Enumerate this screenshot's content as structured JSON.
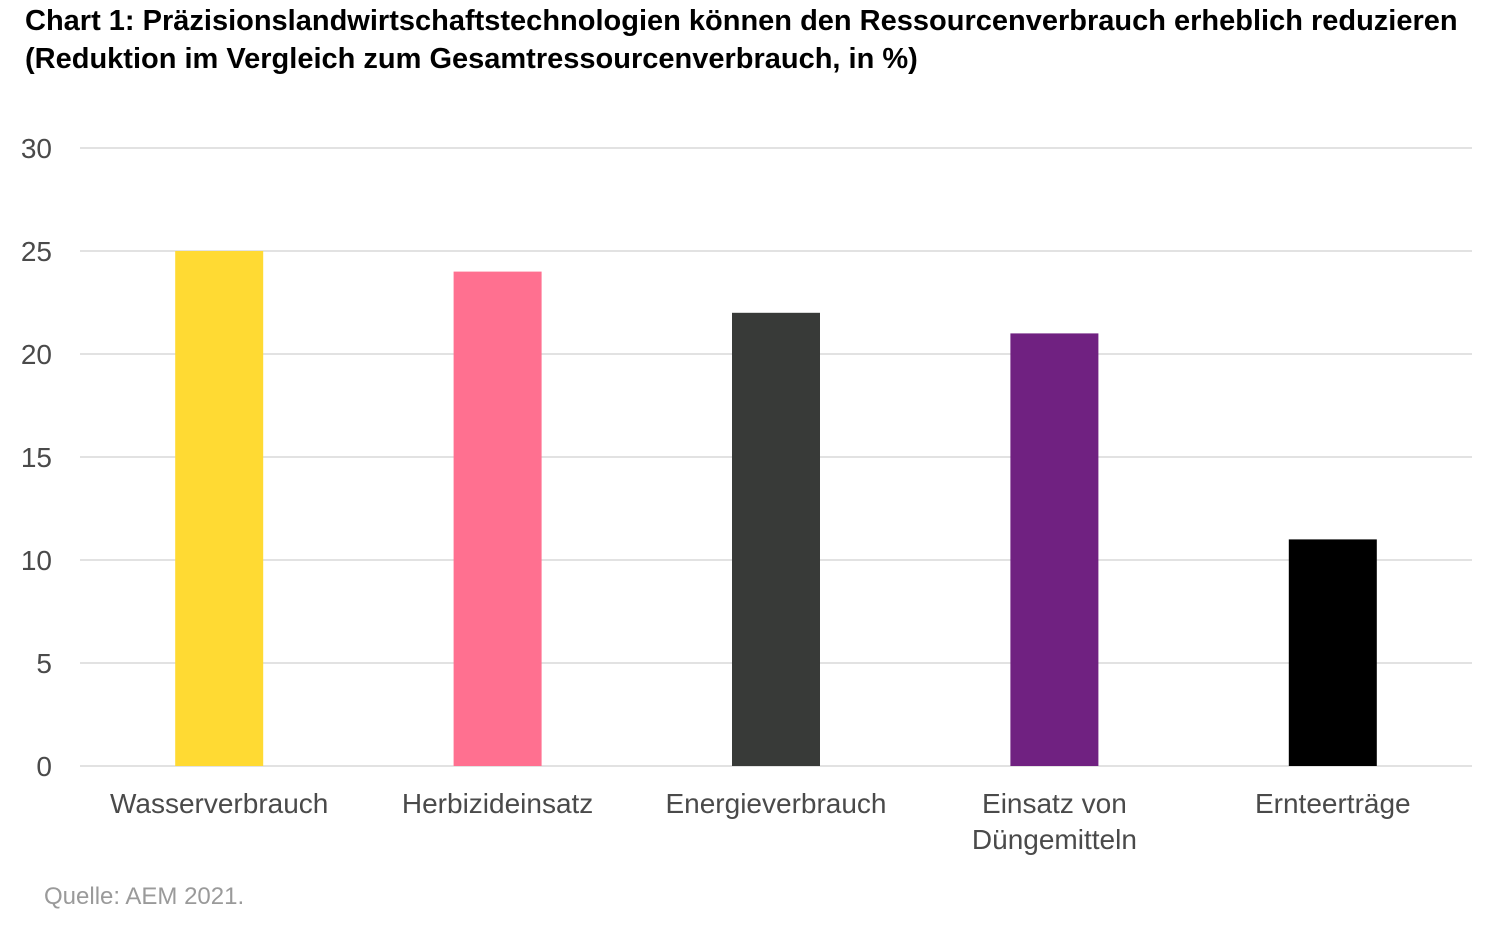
{
  "title": "Chart 1: Präzisionslandwirtschaftstechnologien können den Ressourcenverbrauch erheblich reduzieren (Reduktion im Vergleich zum Gesamtressourcenverbrauch, in %)",
  "source": "Quelle: AEM 2021.",
  "chart_data": {
    "type": "bar",
    "title": "Chart 1: Präzisionslandwirtschaftstechnologien können den Ressourcenverbrauch erheblich reduzieren (Reduktion im Vergleich zum Gesamtressourcenverbrauch, in %)",
    "categories": [
      [
        "Wasserverbrauch"
      ],
      [
        "Herbizideinsatz"
      ],
      [
        "Energieverbrauch"
      ],
      [
        "Einsatz von",
        "Düngemitteln"
      ],
      [
        "Ernteerträge"
      ]
    ],
    "values": [
      25,
      24,
      22,
      21,
      11
    ],
    "colors": [
      "#FFDA33",
      "#FF7090",
      "#383A38",
      "#702181",
      "#000000"
    ],
    "ylim": [
      0,
      30
    ],
    "yticks": [
      0,
      5,
      10,
      15,
      20,
      25,
      30
    ],
    "grid": true,
    "legend": "none"
  }
}
